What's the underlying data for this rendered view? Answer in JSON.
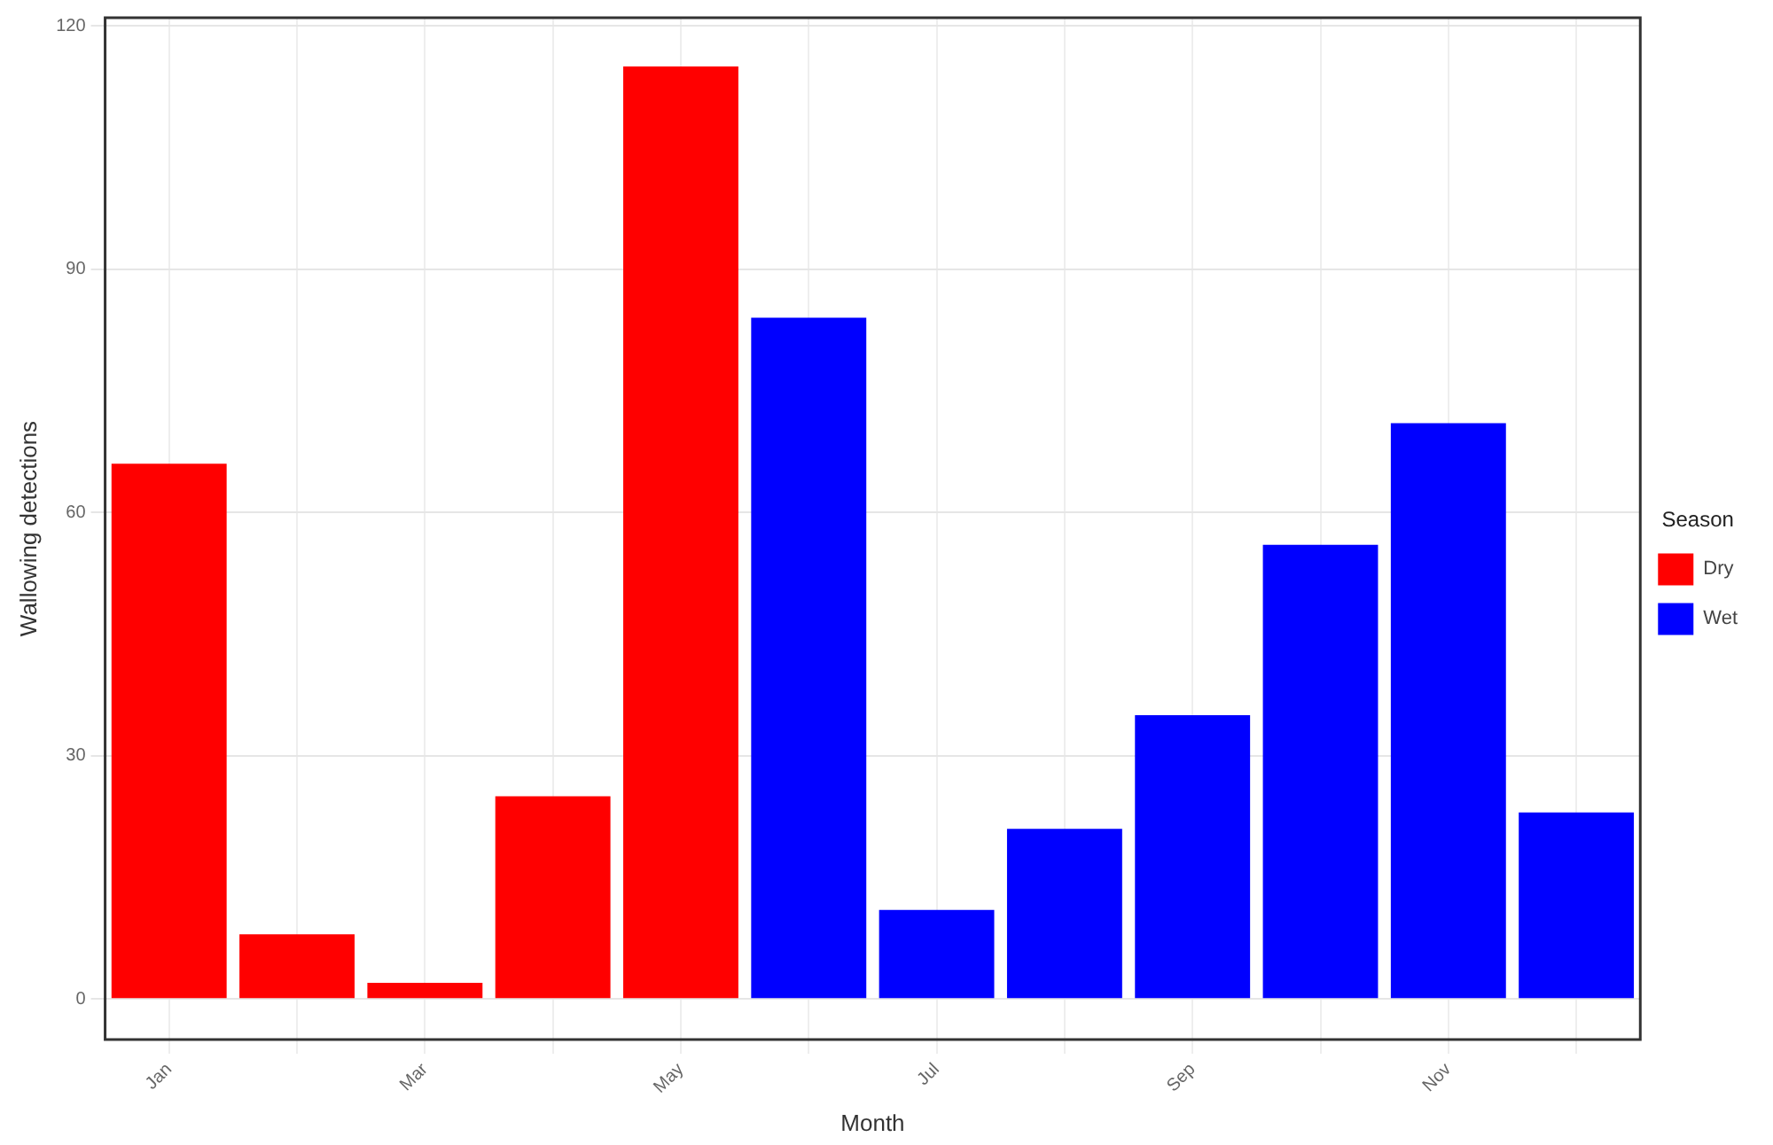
{
  "chart_data": {
    "type": "bar",
    "xlabel": "Month",
    "ylabel": "Wallowing detections",
    "legend_title": "Season",
    "legend": "right",
    "categories": [
      "Jan",
      null,
      "Mar",
      null,
      "May",
      null,
      "Jul",
      null,
      "Sep",
      null,
      "Nov",
      null
    ],
    "series": [
      {
        "name": "Dry",
        "color": "#ff0000",
        "values": [
          66,
          8,
          2,
          25,
          115,
          null,
          null,
          null,
          null,
          null,
          null,
          null
        ]
      },
      {
        "name": "Wet",
        "color": "#0000ff",
        "values": [
          null,
          null,
          null,
          null,
          null,
          84,
          11,
          21,
          35,
          56,
          71,
          23
        ]
      }
    ],
    "ylim": [
      -5,
      121
    ],
    "yticks": [
      0,
      30,
      60,
      90,
      120
    ],
    "grid": true
  }
}
